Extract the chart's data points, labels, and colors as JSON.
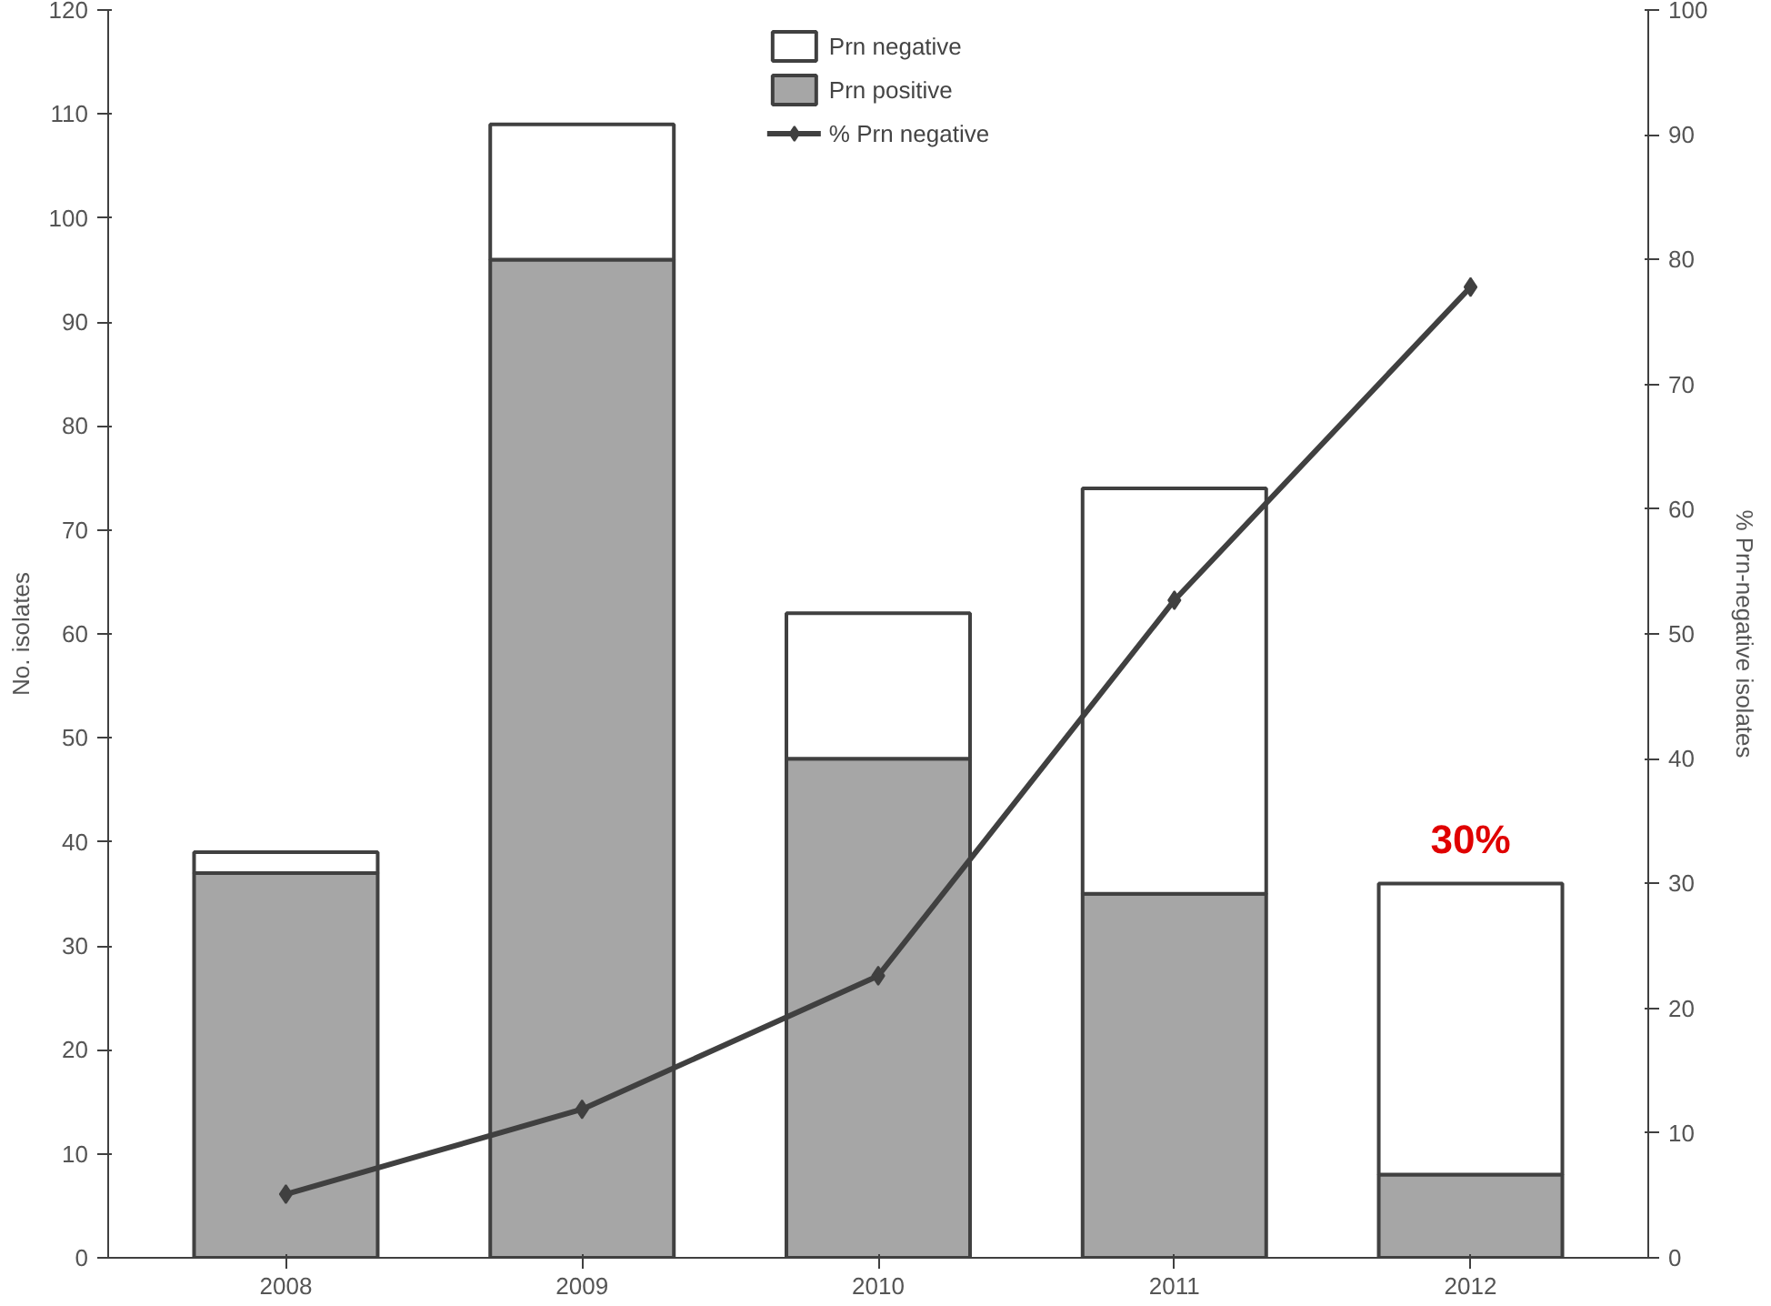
{
  "chart_data": {
    "type": "bar",
    "stacked": true,
    "categories": [
      "2008",
      "2009",
      "2010",
      "2011",
      "2012"
    ],
    "ylabel": "No. isolates",
    "y2label": "% Prn-negative isolates",
    "ylim": [
      0,
      120
    ],
    "yticks": [
      0,
      10,
      20,
      30,
      40,
      50,
      60,
      70,
      80,
      90,
      100,
      110,
      120
    ],
    "y2lim": [
      0,
      100
    ],
    "y2ticks": [
      0,
      10,
      20,
      30,
      40,
      50,
      60,
      70,
      80,
      90,
      100
    ],
    "series": [
      {
        "name": "Prn positive",
        "color": "#a6a6a6",
        "values": [
          37,
          96,
          48,
          35,
          8
        ]
      },
      {
        "name": "Prn negative",
        "color": "#ffffff",
        "values": [
          2,
          13,
          14,
          39,
          28
        ]
      },
      {
        "name": "% Prn negative",
        "type": "line",
        "axis": "y2",
        "color": "#404040",
        "values": [
          5.1,
          11.9,
          22.6,
          52.7,
          77.8
        ]
      }
    ],
    "marker": "diamond",
    "line_style": "solid",
    "grid": false,
    "legend": "top",
    "annotations": [
      "30%"
    ]
  }
}
